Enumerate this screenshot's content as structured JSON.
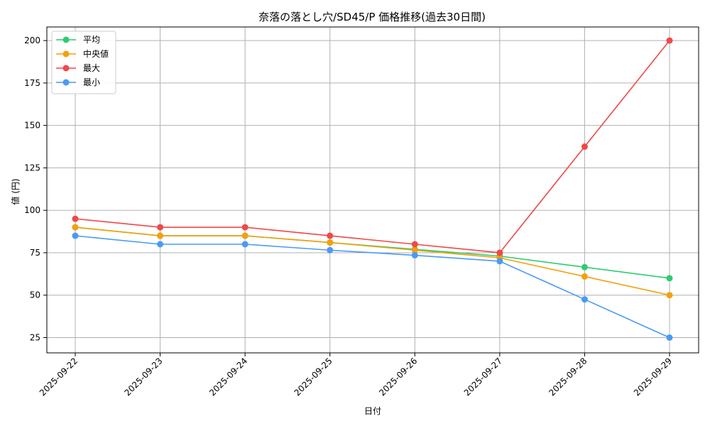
{
  "chart_data": {
    "type": "line",
    "title": "奈落の落とし穴/SD45/P 価格推移(過去30日間)",
    "xlabel": "日付",
    "ylabel": "値 (円)",
    "categories": [
      "2025-09-22",
      "2025-09-23",
      "2025-09-24",
      "2025-09-25",
      "2025-09-26",
      "2025-09-27",
      "2025-09-28",
      "2025-09-29"
    ],
    "yticks": [
      25,
      50,
      75,
      100,
      125,
      150,
      175,
      200
    ],
    "ylim": [
      16,
      208
    ],
    "grid": true,
    "legend_position": "top-left",
    "series": [
      {
        "name": "平均",
        "color": "#2ecc71",
        "values": [
          90,
          85,
          85,
          81,
          77,
          73,
          66.5,
          60
        ]
      },
      {
        "name": "中央値",
        "color": "#f5a00c",
        "values": [
          90,
          85,
          85,
          81,
          76.5,
          72,
          61,
          50
        ]
      },
      {
        "name": "最大",
        "color": "#f04848",
        "values": [
          95,
          90,
          90,
          85,
          80,
          75,
          137.5,
          200
        ]
      },
      {
        "name": "最小",
        "color": "#4a9af5",
        "values": [
          85,
          80,
          80,
          76.5,
          73.5,
          70,
          47.5,
          25
        ]
      }
    ]
  }
}
